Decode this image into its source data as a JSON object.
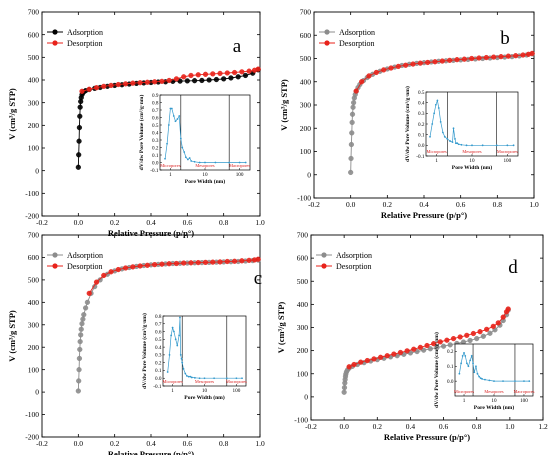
{
  "chart_data": [
    {
      "type": "scatter",
      "panel_label": "a",
      "xlabel": "Relative Pressure (p/p°)",
      "ylabel": "V (cm³/g STP)",
      "xlim": [
        -0.2,
        1.0
      ],
      "ylim": [
        -200,
        700
      ],
      "xticks": [
        "-0.2",
        "0.0",
        "0.2",
        "0.4",
        "0.6",
        "0.8",
        "1.0"
      ],
      "yticks": [
        "-200",
        "-100",
        "0",
        "100",
        "200",
        "300",
        "400",
        "500",
        "600",
        "700"
      ],
      "legend": "top-left",
      "series": [
        {
          "name": "Adsorption",
          "color": "#000000",
          "x": [
            0.0,
            0.002,
            0.004,
            0.006,
            0.008,
            0.01,
            0.013,
            0.016,
            0.02,
            0.025,
            0.03,
            0.04,
            0.06,
            0.09,
            0.12,
            0.16,
            0.2,
            0.24,
            0.28,
            0.32,
            0.36,
            0.4,
            0.44,
            0.48,
            0.52,
            0.56,
            0.6,
            0.64,
            0.68,
            0.72,
            0.76,
            0.8,
            0.84,
            0.88,
            0.92,
            0.96,
            0.99
          ],
          "y": [
            15,
            70,
            130,
            190,
            240,
            280,
            305,
            322,
            335,
            343,
            348,
            353,
            358,
            363,
            367,
            372,
            376,
            379,
            382,
            385,
            387,
            389,
            391,
            392,
            394,
            395,
            396,
            397,
            398,
            400,
            402,
            405,
            409,
            414,
            420,
            430,
            445
          ]
        },
        {
          "name": "Desorption",
          "color": "#e8221a",
          "x": [
            0.02,
            0.06,
            0.1,
            0.14,
            0.18,
            0.22,
            0.26,
            0.3,
            0.34,
            0.38,
            0.42,
            0.46,
            0.5,
            0.54,
            0.58,
            0.62,
            0.66,
            0.7,
            0.74,
            0.78,
            0.82,
            0.86,
            0.9,
            0.94,
            0.97,
            0.99
          ],
          "y": [
            350,
            359,
            366,
            372,
            376,
            380,
            383,
            386,
            388,
            390,
            392,
            394,
            398,
            405,
            414,
            420,
            423,
            425,
            427,
            429,
            431,
            433,
            436,
            439,
            443,
            448
          ]
        }
      ],
      "inset": {
        "type": "line",
        "xscale": "log",
        "xlabel": "Pore Width (nm)",
        "ylabel": "dV/dw Pore Volume (cm³/g·nm)",
        "xlim": [
          0.5,
          200
        ],
        "ylim": [
          -0.1,
          0.9
        ],
        "xticks": [
          "1",
          "10",
          "100"
        ],
        "yticks": [
          "-0.1",
          "0.0",
          "0.1",
          "0.2",
          "0.3",
          "0.4",
          "0.5",
          "0.6",
          "0.7",
          "0.8",
          "0.9"
        ],
        "dividers": [
          2,
          50
        ],
        "regions": [
          "Micropores",
          "Mesopores",
          "Macropores"
        ],
        "color": "#3399cc",
        "x": [
          0.7,
          0.8,
          0.9,
          1.0,
          1.1,
          1.25,
          1.4,
          1.6,
          1.8,
          2.0,
          2.2,
          2.5,
          2.8,
          3.2,
          3.6,
          4.0,
          5,
          7,
          10,
          20,
          50,
          100,
          150
        ],
        "y": [
          0.05,
          0.25,
          0.5,
          0.72,
          0.72,
          0.62,
          0.55,
          0.58,
          0.62,
          0.32,
          0.2,
          0.14,
          0.07,
          0.04,
          0.06,
          0.02,
          0.01,
          0.0,
          0.0,
          0.0,
          0.0,
          0.0,
          0.0
        ]
      }
    },
    {
      "type": "scatter",
      "panel_label": "b",
      "xlabel": "Relative Pressure (p/p°)",
      "ylabel": "V (cm³/g STP)",
      "xlim": [
        -0.2,
        1.0
      ],
      "ylim": [
        -100,
        700
      ],
      "xticks": [
        "-0.2",
        "0.0",
        "0.2",
        "0.4",
        "0.6",
        "0.8",
        "1.0"
      ],
      "yticks": [
        "-100",
        "0",
        "100",
        "200",
        "300",
        "400",
        "500",
        "600",
        "700"
      ],
      "legend": "top-left",
      "series": [
        {
          "name": "Adsorption",
          "color": "#8c8c8c",
          "x": [
            0.0,
            0.002,
            0.004,
            0.006,
            0.008,
            0.01,
            0.013,
            0.016,
            0.02,
            0.025,
            0.03,
            0.04,
            0.05,
            0.07,
            0.09,
            0.12,
            0.16,
            0.2,
            0.24,
            0.28,
            0.32,
            0.36,
            0.4,
            0.44,
            0.48,
            0.52,
            0.56,
            0.6,
            0.64,
            0.68,
            0.72,
            0.76,
            0.8,
            0.84,
            0.88,
            0.92,
            0.96,
            0.99
          ],
          "y": [
            10,
            70,
            130,
            180,
            225,
            260,
            290,
            310,
            330,
            345,
            358,
            375,
            388,
            405,
            418,
            432,
            445,
            455,
            463,
            470,
            475,
            479,
            482,
            485,
            488,
            490,
            492,
            494,
            496,
            498,
            500,
            502,
            504,
            506,
            508,
            511,
            515,
            520
          ]
        },
        {
          "name": "Desorption",
          "color": "#e8221a",
          "x": [
            0.03,
            0.06,
            0.1,
            0.14,
            0.18,
            0.22,
            0.26,
            0.3,
            0.34,
            0.38,
            0.42,
            0.46,
            0.5,
            0.54,
            0.58,
            0.62,
            0.66,
            0.7,
            0.74,
            0.78,
            0.82,
            0.86,
            0.9,
            0.94,
            0.97,
            0.99
          ],
          "y": [
            360,
            400,
            425,
            440,
            451,
            459,
            466,
            471,
            476,
            480,
            483,
            486,
            489,
            492,
            495,
            497,
            500,
            502,
            504,
            506,
            508,
            510,
            512,
            515,
            518,
            522
          ]
        }
      ],
      "inset": {
        "type": "line",
        "xscale": "log",
        "xlabel": "Pore Width (nm)",
        "ylabel": "dV/dw Pore Volume (cm³/g·nm)",
        "xlim": [
          0.5,
          200
        ],
        "ylim": [
          -0.1,
          0.5
        ],
        "xticks": [
          "1",
          "10",
          "100"
        ],
        "yticks": [
          "-0.1",
          "0.0",
          "0.1",
          "0.2",
          "0.3",
          "0.4",
          "0.5"
        ],
        "dividers": [
          2,
          50
        ],
        "regions": [
          "Micropores",
          "Mesopores",
          "Macropores"
        ],
        "color": "#3399cc",
        "x": [
          0.65,
          0.75,
          0.85,
          0.95,
          1.05,
          1.15,
          1.3,
          1.5,
          1.7,
          2.0,
          2.4,
          2.8,
          3.0,
          3.3,
          3.5,
          3.8,
          4.2,
          5,
          7,
          10,
          20,
          50,
          100,
          150
        ],
        "y": [
          0.08,
          0.2,
          0.3,
          0.38,
          0.42,
          0.35,
          0.22,
          0.12,
          0.08,
          0.06,
          0.04,
          0.03,
          0.16,
          0.06,
          0.02,
          0.02,
          0.01,
          0.005,
          0.0,
          0.0,
          0.0,
          0.0,
          0.0,
          0.0
        ]
      }
    },
    {
      "type": "scatter",
      "panel_label": "c",
      "xlabel": "Relative Pressure (p/p°)",
      "ylabel": "V (cm³/g STP)",
      "xlim": [
        -0.2,
        1.0
      ],
      "ylim": [
        -200,
        700
      ],
      "xticks": [
        "-0.2",
        "0.0",
        "0.2",
        "0.4",
        "0.6",
        "0.8",
        "1.0"
      ],
      "yticks": [
        "-200",
        "-100",
        "0",
        "100",
        "200",
        "300",
        "400",
        "500",
        "600",
        "700"
      ],
      "legend": "top-left",
      "series": [
        {
          "name": "Adsorption",
          "color": "#8c8c8c",
          "x": [
            0.0,
            0.002,
            0.004,
            0.006,
            0.008,
            0.01,
            0.013,
            0.016,
            0.02,
            0.025,
            0.03,
            0.04,
            0.05,
            0.07,
            0.09,
            0.12,
            0.16,
            0.2,
            0.24,
            0.28,
            0.32,
            0.36,
            0.4,
            0.44,
            0.48,
            0.52,
            0.56,
            0.6,
            0.64,
            0.68,
            0.72,
            0.76,
            0.8,
            0.84,
            0.88,
            0.92,
            0.96,
            0.99
          ],
          "y": [
            5,
            50,
            100,
            150,
            190,
            225,
            255,
            280,
            305,
            325,
            345,
            375,
            400,
            440,
            470,
            500,
            525,
            540,
            549,
            555,
            560,
            564,
            567,
            569,
            571,
            573,
            574,
            575,
            576,
            577,
            578,
            579,
            580,
            581,
            582,
            584,
            586,
            588
          ]
        },
        {
          "name": "Desorption",
          "color": "#e8221a",
          "x": [
            0.06,
            0.1,
            0.14,
            0.18,
            0.22,
            0.26,
            0.3,
            0.34,
            0.38,
            0.42,
            0.46,
            0.5,
            0.54,
            0.58,
            0.62,
            0.66,
            0.7,
            0.74,
            0.78,
            0.82,
            0.86,
            0.9,
            0.94,
            0.97,
            0.99
          ],
          "y": [
            440,
            490,
            520,
            536,
            546,
            553,
            558,
            562,
            565,
            568,
            570,
            572,
            573,
            575,
            576,
            577,
            578,
            579,
            580,
            582,
            583,
            585,
            587,
            589,
            592
          ]
        }
      ],
      "inset": {
        "type": "line",
        "xscale": "log",
        "xlabel": "Pore Width (nm)",
        "ylabel": "dV/dw Pore Volume (cm³/g·nm)",
        "xlim": [
          0.5,
          200
        ],
        "ylim": [
          -0.1,
          0.8
        ],
        "xticks": [
          "1",
          "10",
          "100"
        ],
        "yticks": [
          "-0.1",
          "0.0",
          "0.1",
          "0.2",
          "0.3",
          "0.4",
          "0.5",
          "0.6",
          "0.7",
          "0.8"
        ],
        "dividers": [
          2,
          50
        ],
        "regions": [
          "Micropores",
          "Mesopores",
          "Macropores"
        ],
        "color": "#3399cc",
        "x": [
          0.7,
          0.8,
          0.9,
          1.0,
          1.1,
          1.25,
          1.4,
          1.6,
          1.7,
          1.8,
          1.9,
          2.0,
          2.2,
          2.5,
          2.8,
          3.2,
          3.6,
          4.0,
          5,
          7,
          10,
          20,
          50,
          100,
          150
        ],
        "y": [
          0.08,
          0.3,
          0.55,
          0.65,
          0.6,
          0.5,
          0.42,
          0.55,
          0.78,
          0.3,
          0.25,
          0.2,
          0.12,
          0.06,
          0.03,
          0.02,
          0.02,
          0.01,
          0.005,
          0.0,
          0.0,
          0.0,
          0.0,
          0.0,
          0.0
        ]
      }
    },
    {
      "type": "scatter",
      "panel_label": "d",
      "xlabel": "Relative Pressure (p/p°)",
      "ylabel": "V (cm³/g STP)",
      "xlim": [
        -0.2,
        1.2
      ],
      "ylim": [
        -100,
        700
      ],
      "xticks": [
        "-0.2",
        "0.0",
        "0.2",
        "0.4",
        "0.6",
        "0.8",
        "1.0",
        "1.2"
      ],
      "yticks": [
        "-100",
        "0",
        "100",
        "200",
        "300",
        "400",
        "500",
        "600",
        "700"
      ],
      "legend": "top-left",
      "series": [
        {
          "name": "Adsorption",
          "color": "#8c8c8c",
          "x": [
            0.0,
            0.002,
            0.004,
            0.006,
            0.008,
            0.01,
            0.014,
            0.02,
            0.03,
            0.05,
            0.08,
            0.12,
            0.16,
            0.2,
            0.24,
            0.28,
            0.32,
            0.36,
            0.4,
            0.44,
            0.48,
            0.52,
            0.56,
            0.6,
            0.64,
            0.68,
            0.72,
            0.76,
            0.8,
            0.84,
            0.88,
            0.91,
            0.94,
            0.96,
            0.98,
            0.99
          ],
          "y": [
            20,
            40,
            60,
            75,
            88,
            98,
            108,
            116,
            124,
            132,
            140,
            148,
            155,
            161,
            167,
            173,
            178,
            184,
            190,
            196,
            202,
            208,
            213,
            219,
            225,
            231,
            237,
            244,
            252,
            262,
            275,
            290,
            310,
            330,
            355,
            375
          ]
        },
        {
          "name": "Desorption",
          "color": "#e8221a",
          "x": [
            0.03,
            0.06,
            0.1,
            0.14,
            0.18,
            0.22,
            0.26,
            0.3,
            0.34,
            0.38,
            0.42,
            0.46,
            0.5,
            0.54,
            0.58,
            0.62,
            0.66,
            0.7,
            0.74,
            0.78,
            0.82,
            0.86,
            0.9,
            0.93,
            0.96,
            0.98,
            0.99
          ],
          "y": [
            130,
            140,
            150,
            157,
            164,
            171,
            178,
            185,
            192,
            199,
            206,
            214,
            222,
            230,
            238,
            245,
            252,
            259,
            266,
            274,
            282,
            292,
            305,
            320,
            345,
            368,
            380
          ]
        }
      ],
      "inset": {
        "type": "line",
        "xscale": "log",
        "xlabel": "Pore Width (nm)",
        "ylabel": "dV/dw Pore Volume (cm³/g·nm)",
        "xlim": [
          0.5,
          200
        ],
        "ylim": [
          -0.1,
          0.25
        ],
        "xticks": [
          "1",
          "10",
          "100"
        ],
        "yticks": [
          "0.0",
          "0.1",
          "0.2"
        ],
        "dividers": [
          2,
          50
        ],
        "regions": [
          "Micropores",
          "Mesopores",
          "Macropores"
        ],
        "color": "#3399cc",
        "x": [
          0.7,
          0.8,
          0.9,
          1.0,
          1.1,
          1.25,
          1.4,
          1.6,
          1.8,
          2.0,
          2.2,
          2.5,
          2.8,
          3.2,
          3.6,
          4.0,
          5,
          7,
          10,
          20,
          50,
          100,
          150
        ],
        "y": [
          0.05,
          0.12,
          0.17,
          0.19,
          0.17,
          0.12,
          0.1,
          0.14,
          0.17,
          0.12,
          0.06,
          0.1,
          0.05,
          0.03,
          0.02,
          0.015,
          0.01,
          0.005,
          0.0,
          0.0,
          0.0,
          0.0,
          0.0
        ]
      }
    }
  ]
}
